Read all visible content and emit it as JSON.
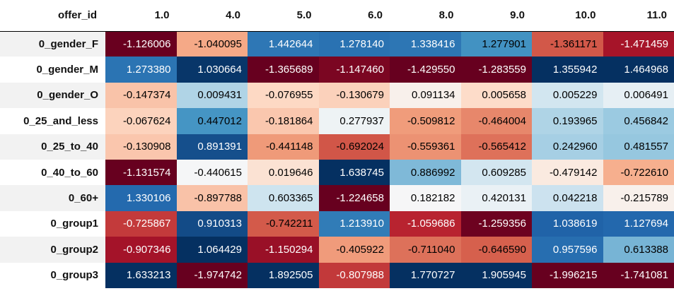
{
  "chart_data": {
    "type": "heatmap",
    "index_name": "offer_id",
    "columns": [
      "1.0",
      "4.0",
      "5.0",
      "6.0",
      "8.0",
      "9.0",
      "10.0",
      "11.0"
    ],
    "rows": [
      "0_gender_F",
      "0_gender_M",
      "0_gender_O",
      "0_25_and_less",
      "0_25_to_40",
      "0_40_to_60",
      "0_60+",
      "0_group1",
      "0_group2",
      "0_group3"
    ],
    "values": [
      [
        "-1.126006",
        "-1.040095",
        "1.442644",
        "1.278140",
        "1.338416",
        "1.277901",
        "-1.361171",
        "-1.471459"
      ],
      [
        "1.273380",
        "1.030664",
        "-1.365689",
        "-1.147460",
        "-1.429550",
        "-1.283559",
        "1.355942",
        "1.464968"
      ],
      [
        "-0.147374",
        "0.009431",
        "-0.076955",
        "-0.130679",
        "0.091134",
        "0.005658",
        "0.005229",
        "0.006491"
      ],
      [
        "-0.067624",
        "0.447012",
        "-0.181864",
        "0.277937",
        "-0.509812",
        "-0.464004",
        "0.193965",
        "0.456842"
      ],
      [
        "-0.130908",
        "0.891391",
        "-0.441148",
        "-0.692024",
        "-0.559361",
        "-0.565412",
        "0.242960",
        "0.481557"
      ],
      [
        "-1.131574",
        "-0.440615",
        "0.019646",
        "1.638745",
        "0.886992",
        "0.609285",
        "-0.479142",
        "-0.722610"
      ],
      [
        "1.330106",
        "-0.897788",
        "0.603365",
        "-1.224658",
        "0.182182",
        "0.420131",
        "0.042218",
        "-0.215789"
      ],
      [
        "-0.725867",
        "0.910313",
        "-0.742211",
        "1.213910",
        "-1.059686",
        "-1.259356",
        "1.038619",
        "1.127694"
      ],
      [
        "-0.907346",
        "1.064429",
        "-1.150294",
        "-0.405922",
        "-0.711040",
        "-0.646590",
        "0.957596",
        "0.613388"
      ],
      [
        "1.633213",
        "-1.974742",
        "1.892505",
        "-0.807988",
        "1.770727",
        "1.905945",
        "-1.996215",
        "-1.741081"
      ]
    ],
    "colormap": "RdBu",
    "column_ranges": [
      [
        -1.131574,
        1.633213
      ],
      [
        -1.974742,
        1.064429
      ],
      [
        -1.365689,
        1.892505
      ],
      [
        -1.224658,
        1.638745
      ],
      [
        -1.42955,
        1.770727
      ],
      [
        -1.283559,
        1.905945
      ],
      [
        -1.996215,
        1.355942
      ],
      [
        -1.741081,
        1.464968
      ]
    ],
    "colors": {
      "low": "#67001f",
      "mid": "#f7f7f7",
      "high": "#053061",
      "text_light": "#ffffff",
      "text_dark": "#000000"
    }
  }
}
